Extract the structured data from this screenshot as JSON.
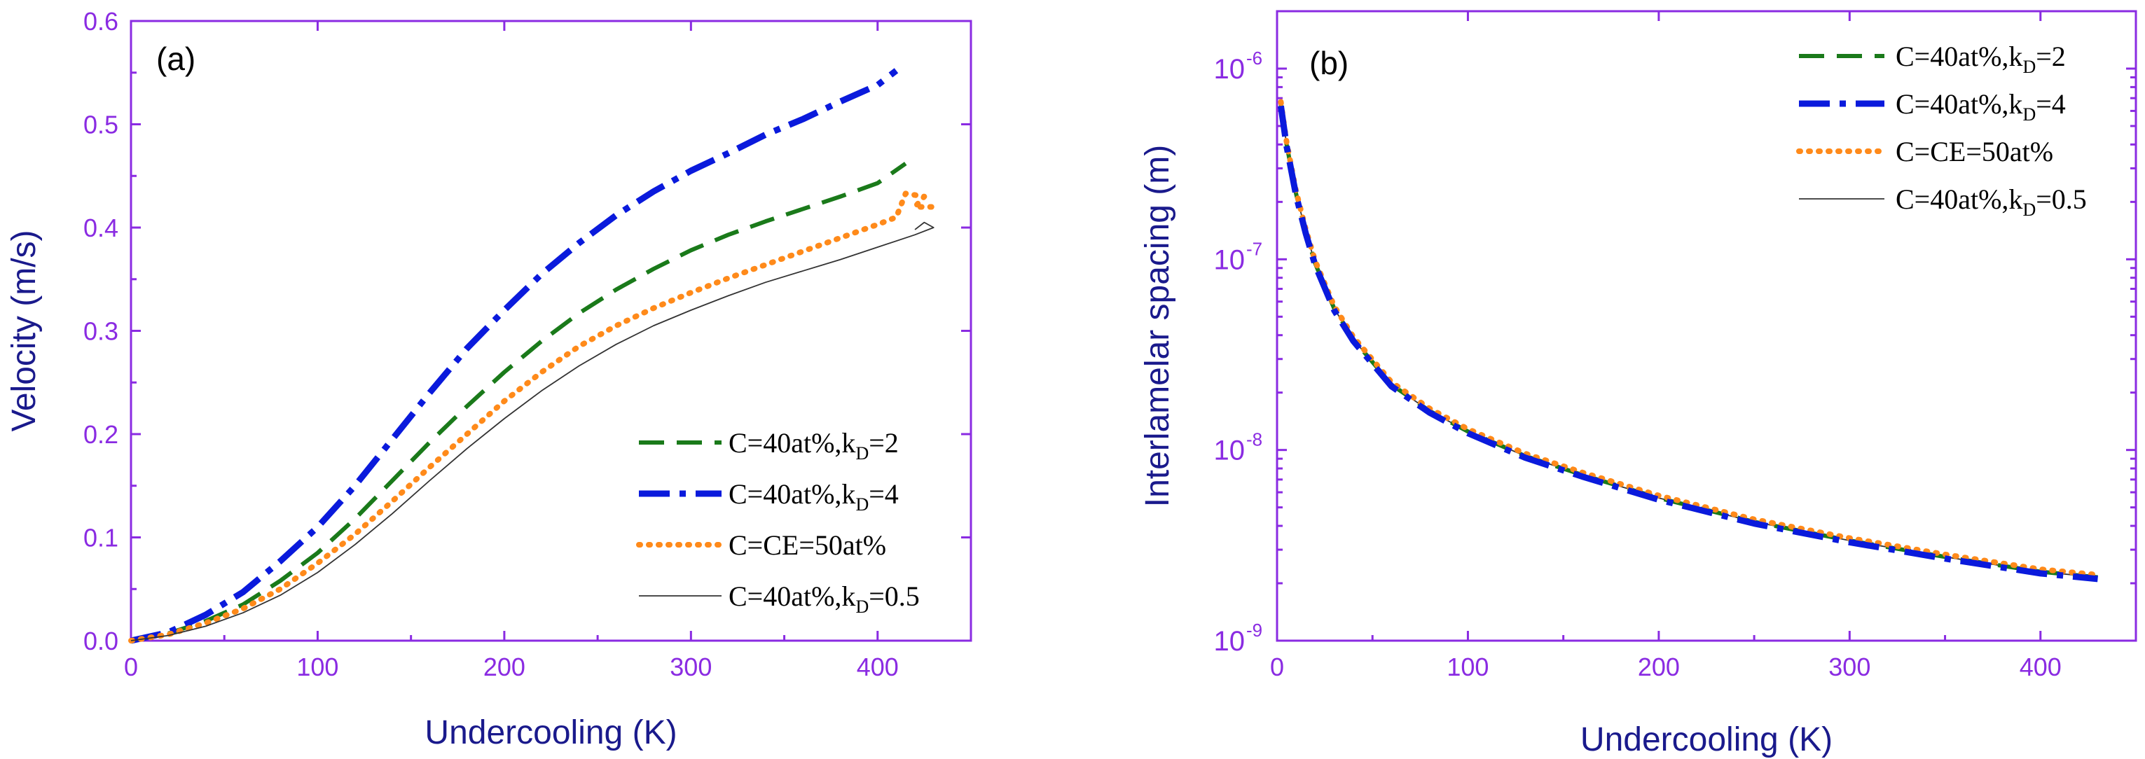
{
  "colors": {
    "axis": "#8a2be2",
    "title": "#1a1a8c",
    "kD2": "#1a7a1a",
    "kD4": "#0a1adc",
    "CE": "#ff8a1a",
    "kD05": "#333333"
  },
  "chart_data": [
    {
      "type": "line",
      "panel_label": "(a)",
      "xlabel": "Undercooling (K)",
      "ylabel": "Velocity (m/s)",
      "xlim": [
        0,
        450
      ],
      "ylim": [
        0,
        0.6
      ],
      "xticks": [
        0,
        100,
        200,
        300,
        400
      ],
      "yticks": [
        0.0,
        0.1,
        0.2,
        0.3,
        0.4,
        0.5,
        0.6
      ],
      "xtick_labels": [
        "0",
        "100",
        "200",
        "300",
        "400"
      ],
      "ytick_labels": [
        "0.0",
        "0.1",
        "0.2",
        "0.3",
        "0.4",
        "0.5",
        "0.6"
      ],
      "legend_position": "lower-right",
      "series": [
        {
          "key": "kD2",
          "label_main": "C=40at%,k",
          "label_sub": "D",
          "label_tail": "=2",
          "style": "dash",
          "x": [
            0,
            20,
            40,
            60,
            80,
            100,
            120,
            140,
            160,
            180,
            200,
            220,
            240,
            260,
            280,
            300,
            320,
            340,
            360,
            380,
            400,
            415
          ],
          "y": [
            0,
            0.007,
            0.019,
            0.035,
            0.058,
            0.085,
            0.118,
            0.155,
            0.192,
            0.227,
            0.26,
            0.29,
            0.317,
            0.34,
            0.36,
            0.378,
            0.393,
            0.406,
            0.418,
            0.43,
            0.443,
            0.462
          ]
        },
        {
          "key": "kD4",
          "label_main": "C=40at%,k",
          "label_sub": "D",
          "label_tail": "=4",
          "style": "dashdot",
          "x": [
            0,
            20,
            40,
            60,
            80,
            100,
            120,
            140,
            160,
            180,
            200,
            220,
            240,
            260,
            280,
            300,
            320,
            340,
            360,
            380,
            400,
            410
          ],
          "y": [
            0,
            0.008,
            0.025,
            0.047,
            0.077,
            0.11,
            0.15,
            0.195,
            0.24,
            0.283,
            0.32,
            0.355,
            0.385,
            0.412,
            0.435,
            0.455,
            0.472,
            0.49,
            0.505,
            0.522,
            0.538,
            0.552
          ]
        },
        {
          "key": "CE",
          "label_main": "C=CE=50at%",
          "label_sub": "",
          "label_tail": "",
          "style": "dot",
          "x": [
            0,
            20,
            40,
            60,
            80,
            100,
            120,
            140,
            160,
            180,
            200,
            220,
            240,
            260,
            280,
            300,
            320,
            340,
            360,
            380,
            400,
            410,
            415,
            425,
            420,
            430
          ],
          "y": [
            0,
            0.006,
            0.017,
            0.031,
            0.05,
            0.075,
            0.103,
            0.135,
            0.168,
            0.2,
            0.232,
            0.26,
            0.285,
            0.305,
            0.322,
            0.337,
            0.351,
            0.364,
            0.377,
            0.39,
            0.403,
            0.41,
            0.433,
            0.43,
            0.42,
            0.42
          ]
        },
        {
          "key": "kD05",
          "label_main": "C=40at%,k",
          "label_sub": "D",
          "label_tail": "=0.5",
          "style": "solid",
          "x": [
            0,
            20,
            40,
            60,
            80,
            100,
            120,
            140,
            160,
            180,
            200,
            220,
            240,
            260,
            280,
            300,
            320,
            340,
            360,
            380,
            400,
            420,
            430,
            425,
            420
          ],
          "y": [
            0,
            0.005,
            0.014,
            0.027,
            0.044,
            0.066,
            0.093,
            0.123,
            0.155,
            0.186,
            0.215,
            0.242,
            0.266,
            0.287,
            0.305,
            0.32,
            0.334,
            0.347,
            0.358,
            0.369,
            0.381,
            0.393,
            0.4,
            0.405,
            0.398
          ]
        }
      ]
    },
    {
      "type": "line",
      "panel_label": "(b)",
      "xlabel": "Undercooling (K)",
      "ylabel": "Interlamelar spacing (m)",
      "yscale": "log",
      "xlim": [
        0,
        450
      ],
      "ylim": [
        1e-09,
        2e-06
      ],
      "xticks": [
        0,
        100,
        200,
        300,
        400
      ],
      "xtick_labels": [
        "0",
        "100",
        "200",
        "300",
        "400"
      ],
      "yticks": [
        1e-09,
        1e-08,
        1e-07,
        1e-06
      ],
      "ytick_base": [
        "10",
        "10",
        "10",
        "10"
      ],
      "ytick_exp": [
        "-9",
        "-8",
        "-7",
        "-6"
      ],
      "legend_position": "top-right",
      "series": [
        {
          "key": "kD2",
          "label_main": "C=40at%,k",
          "label_sub": "D",
          "label_tail": "=2",
          "style": "dash"
        },
        {
          "key": "kD4",
          "label_main": "C=40at%,k",
          "label_sub": "D",
          "label_tail": "=4",
          "style": "dashdot"
        },
        {
          "key": "CE",
          "label_main": "C=CE=50at%",
          "label_sub": "",
          "label_tail": "",
          "style": "dot"
        },
        {
          "key": "kD05",
          "label_main": "C=40at%,k",
          "label_sub": "D",
          "label_tail": "=0.5",
          "style": "solid"
        }
      ],
      "x": [
        2,
        5,
        10,
        15,
        20,
        30,
        40,
        60,
        80,
        100,
        130,
        160,
        200,
        250,
        300,
        350,
        400,
        430
      ],
      "y": [
        6.5e-07,
        4e-07,
        2.2e-07,
        1.4e-07,
        9.5e-08,
        5.5e-08,
        3.8e-08,
        2.2e-08,
        1.6e-08,
        1.25e-08,
        9.3e-09,
        7.4e-09,
        5.6e-09,
        4.2e-09,
        3.35e-09,
        2.75e-09,
        2.3e-09,
        2.15e-09
      ]
    }
  ]
}
